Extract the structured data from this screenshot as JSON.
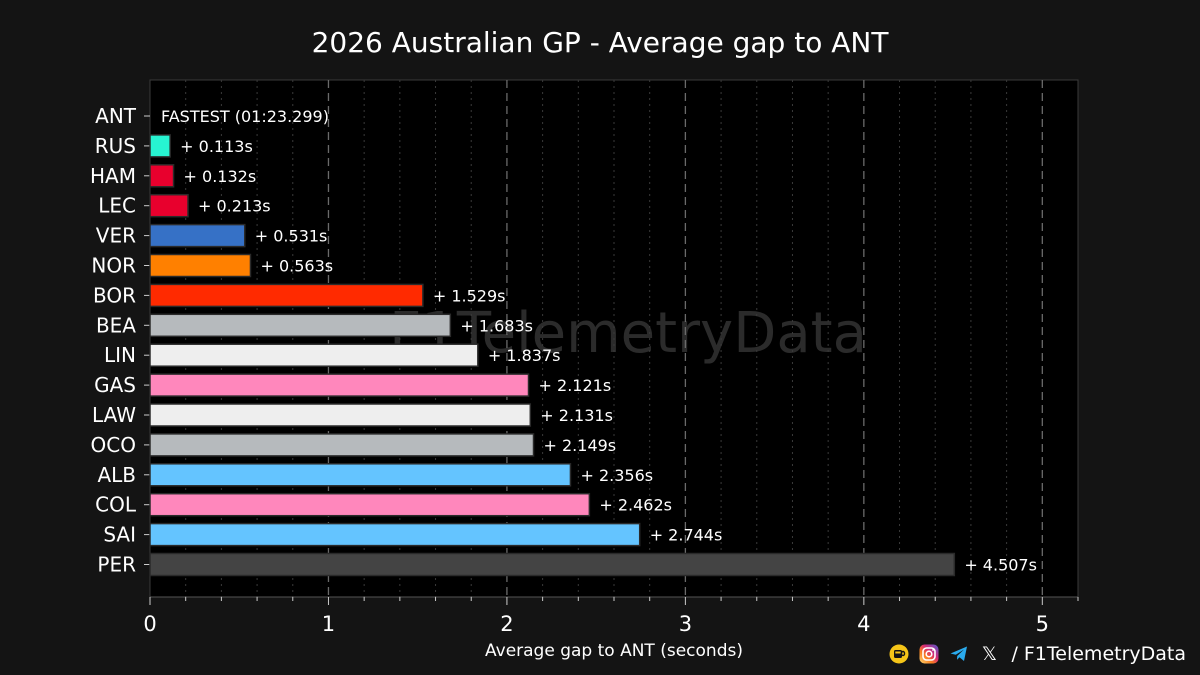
{
  "chart_data": {
    "type": "bar",
    "orientation": "horizontal",
    "title": "2026 Australian GP - Average gap to ANT",
    "xlabel": "Average gap to ANT (seconds)",
    "ylabel": "",
    "xlim": [
      0,
      5.2
    ],
    "xticks": [
      0,
      1,
      2,
      3,
      4,
      5
    ],
    "grid": "vertical dashed (major) and dotted (minor)",
    "watermark": "F1TelemetryData",
    "categories": [
      "ANT",
      "RUS",
      "HAM",
      "LEC",
      "VER",
      "NOR",
      "BOR",
      "BEA",
      "LIN",
      "GAS",
      "LAW",
      "OCO",
      "ALB",
      "COL",
      "SAI",
      "PER"
    ],
    "values": [
      0,
      0.113,
      0.132,
      0.213,
      0.531,
      0.563,
      1.529,
      1.683,
      1.837,
      2.121,
      2.131,
      2.149,
      2.356,
      2.462,
      2.744,
      4.507
    ],
    "labels": [
      "FASTEST (01:23.299)",
      "+ 0.113s",
      "+ 0.132s",
      "+ 0.213s",
      "+ 0.531s",
      "+ 0.563s",
      "+ 1.529s",
      "+ 1.683s",
      "+ 1.837s",
      "+ 2.121s",
      "+ 2.131s",
      "+ 2.149s",
      "+ 2.356s",
      "+ 2.462s",
      "+ 2.744s",
      "+ 4.507s"
    ],
    "colors": [
      "#ffffff",
      "#27F4D2",
      "#E8002D",
      "#E8002D",
      "#3671C6",
      "#FF8000",
      "#FF2A00",
      "#B6BABD",
      "#EEEEEE",
      "#FF87BC",
      "#EEEEEE",
      "#B6BABD",
      "#64C4FF",
      "#FF87BC",
      "#64C4FF",
      "#444444"
    ]
  },
  "footer": {
    "icons": [
      "ko-fi-icon",
      "instagram-icon",
      "telegram-icon",
      "x-icon"
    ],
    "x_glyph": "𝕏",
    "handle": "/ F1TelemetryData"
  }
}
